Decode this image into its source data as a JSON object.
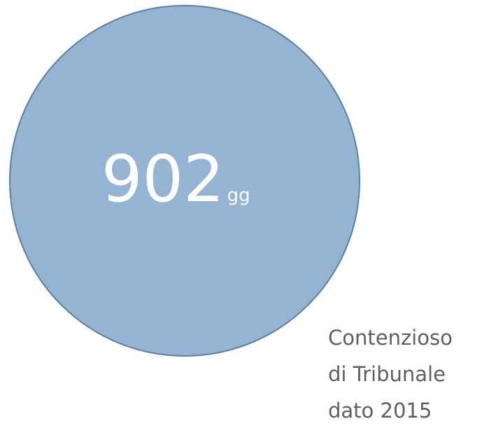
{
  "figure": {
    "value": "902",
    "unit": "gg",
    "caption": [
      "Contenzioso",
      "di Tribunale",
      "dato 2015"
    ]
  }
}
